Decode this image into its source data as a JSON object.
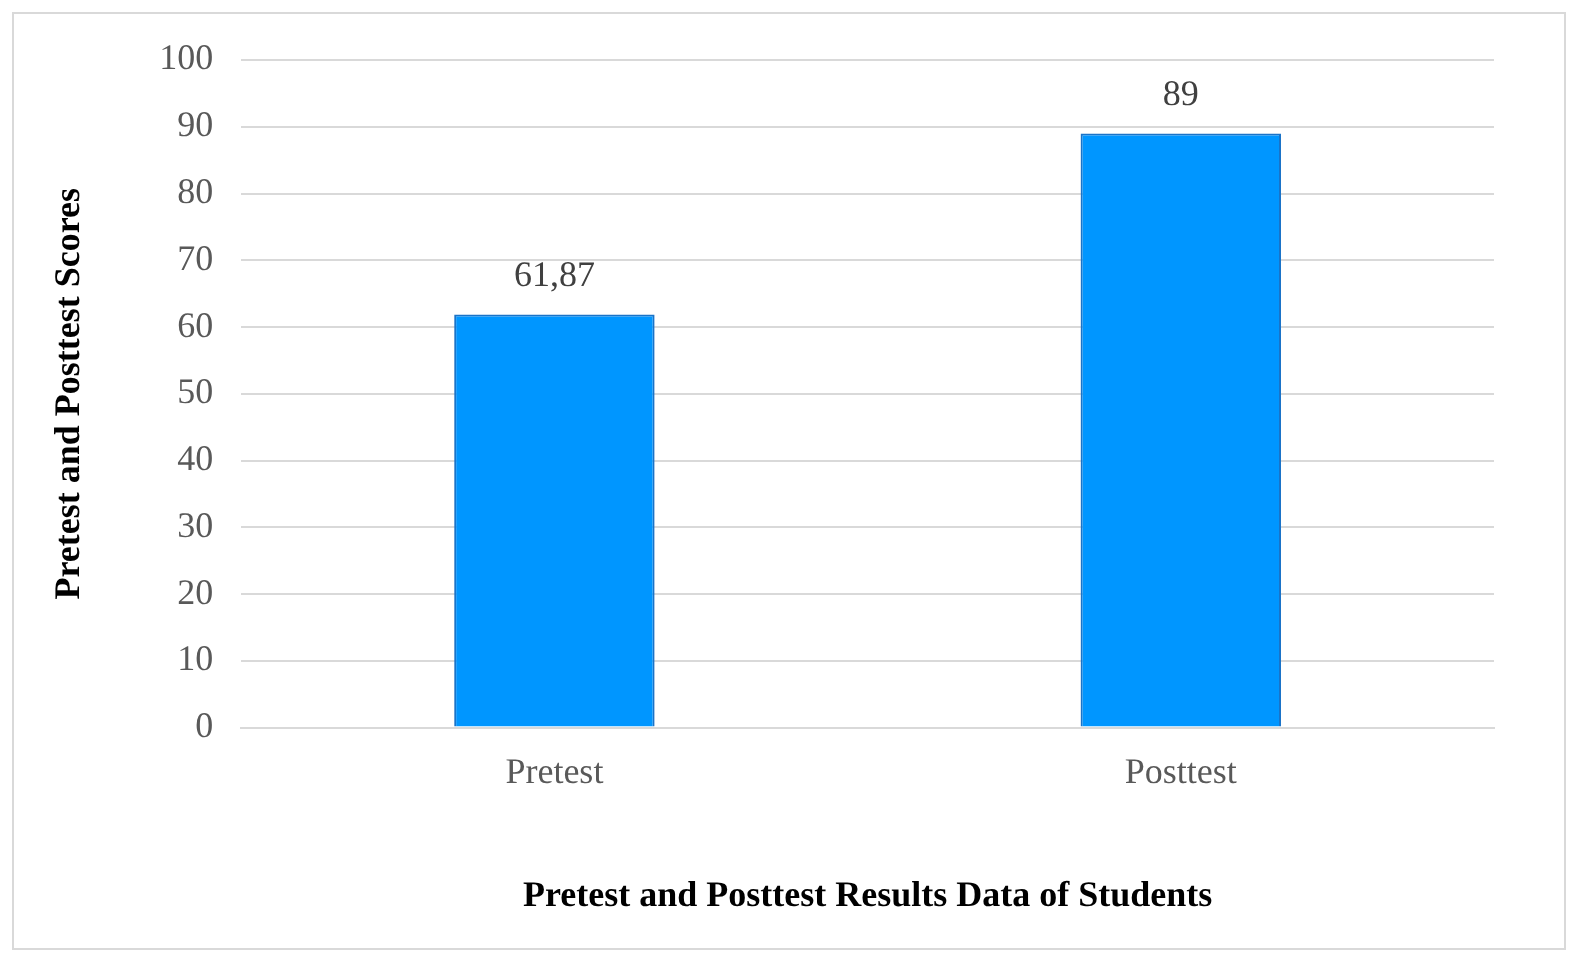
{
  "chart_data": {
    "type": "bar",
    "xlabel": "Pretest and Posttest Results Data of Students",
    "ylabel": "Pretest and Posttest Scores",
    "categories": [
      "Pretest",
      "Posttest"
    ],
    "values": [
      61.87,
      89
    ],
    "value_labels": [
      "61,87",
      "89"
    ],
    "color": "#0096ff",
    "ylim": [
      0,
      100
    ],
    "yticks": [
      0,
      10,
      20,
      30,
      40,
      50,
      60,
      70,
      80,
      90,
      100
    ],
    "grid": "y"
  }
}
